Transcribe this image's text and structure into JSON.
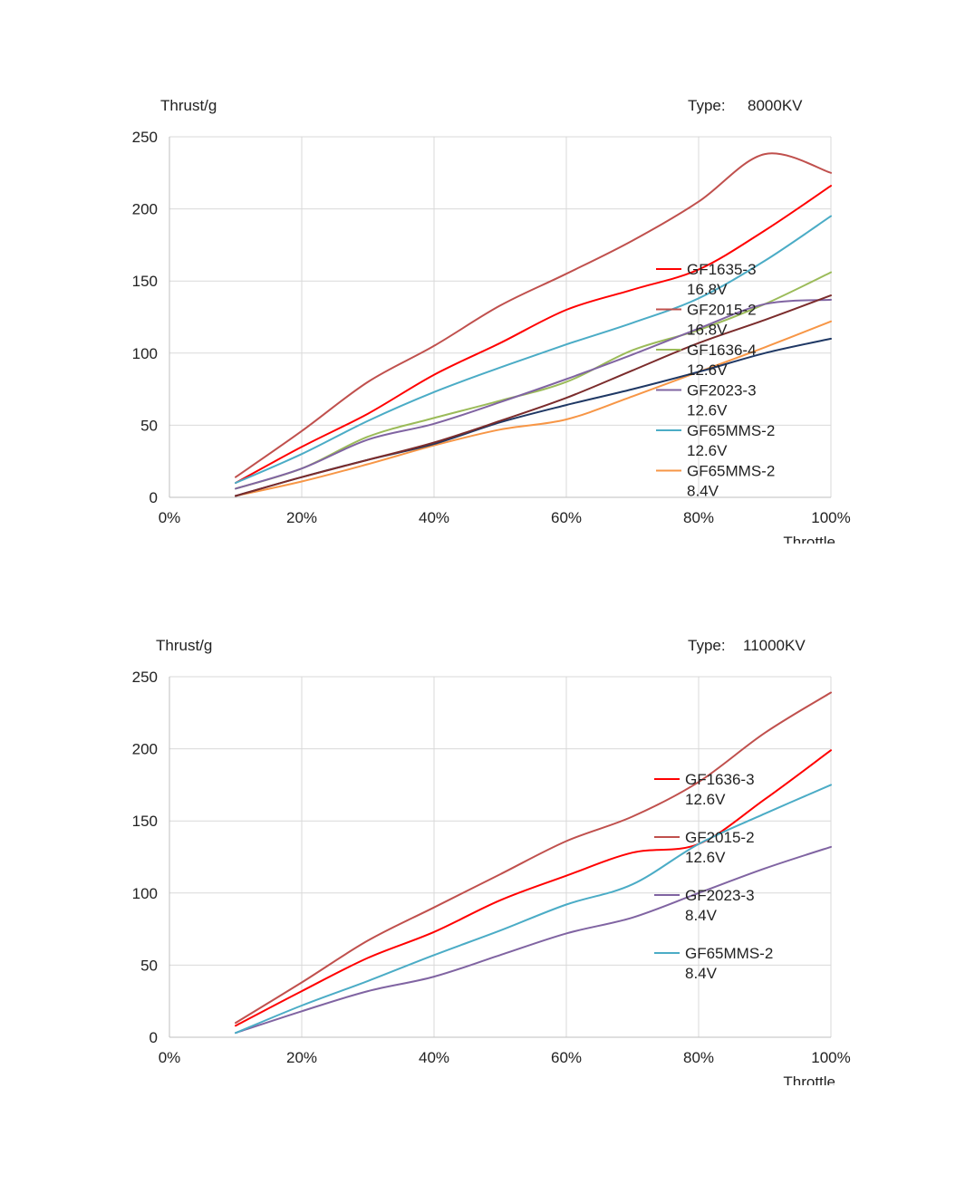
{
  "chart_data": [
    {
      "type": "line",
      "title": "",
      "ylabel": "Thrust/g",
      "xlabel": "Throttle",
      "type_label": "Type:",
      "type_value": "8000KV",
      "ylim": [
        0,
        250
      ],
      "xlim": [
        0,
        100
      ],
      "yticks": [
        "0",
        "50",
        "100",
        "150",
        "200",
        "250"
      ],
      "xticks": [
        "0%",
        "20%",
        "40%",
        "60%",
        "80%",
        "100%"
      ],
      "x": [
        10,
        20,
        30,
        40,
        50,
        60,
        70,
        80,
        90,
        100
      ],
      "grid": true,
      "legend_position": "right",
      "series": [
        {
          "name": "GF1635-3 16.8V",
          "color": "#ff0000",
          "values": [
            10,
            35,
            58,
            85,
            107,
            130,
            144,
            158,
            185,
            216
          ]
        },
        {
          "name": "GF2015-2 16.8V",
          "color": "#c0504d",
          "values": [
            14,
            46,
            80,
            105,
            133,
            155,
            178,
            205,
            238,
            225
          ]
        },
        {
          "name": "GF1636-4 12.6V",
          "color": "#9bbb59",
          "values": [
            6,
            20,
            42,
            55,
            67,
            80,
            102,
            116,
            134,
            156
          ]
        },
        {
          "name": "GF2023-3 12.6V",
          "color": "#8064a2",
          "values": [
            6,
            20,
            40,
            51,
            66,
            82,
            99,
            117,
            134,
            137
          ]
        },
        {
          "name": "GF65MMS-2 12.6V",
          "color": "#4bacc6",
          "values": [
            10,
            30,
            53,
            73,
            90,
            106,
            121,
            138,
            164,
            195
          ]
        },
        {
          "name": "GF65MMS-2 8.4V",
          "color": "#f79646",
          "values": [
            1,
            11,
            23,
            36,
            47,
            54,
            70,
            87,
            104,
            122
          ]
        },
        {
          "name": "",
          "color": "#1f3864",
          "values": [
            1,
            14,
            26,
            37,
            52,
            64,
            75,
            87,
            100,
            110
          ]
        },
        {
          "name": "",
          "color": "#7b2c2c",
          "values": [
            1,
            14,
            26,
            38,
            53,
            69,
            88,
            107,
            123,
            140
          ]
        }
      ]
    },
    {
      "type": "line",
      "title": "",
      "ylabel": "Thrust/g",
      "xlabel": "Throttle",
      "type_label": "Type:",
      "type_value": "11000KV",
      "ylim": [
        0,
        250
      ],
      "xlim": [
        0,
        100
      ],
      "yticks": [
        "0",
        "50",
        "100",
        "150",
        "200",
        "250"
      ],
      "xticks": [
        "0%",
        "20%",
        "40%",
        "60%",
        "80%",
        "100%"
      ],
      "x": [
        10,
        20,
        30,
        40,
        50,
        60,
        70,
        80,
        90,
        100
      ],
      "grid": true,
      "legend_position": "right",
      "series": [
        {
          "name": "GF1636-3 12.6V",
          "color": "#ff0000",
          "values": [
            8,
            32,
            55,
            73,
            95,
            112,
            128,
            134,
            165,
            199
          ]
        },
        {
          "name": "GF2015-2 12.6V",
          "color": "#c0504d",
          "values": [
            10,
            38,
            67,
            90,
            113,
            136,
            153,
            177,
            211,
            239
          ]
        },
        {
          "name": "GF2023-3 8.4V",
          "color": "#8064a2",
          "values": [
            3,
            18,
            32,
            42,
            57,
            72,
            83,
            100,
            117,
            132
          ]
        },
        {
          "name": "GF65MMS-2 8.4V",
          "color": "#4bacc6",
          "values": [
            3,
            22,
            39,
            57,
            74,
            92,
            106,
            134,
            155,
            175
          ]
        }
      ]
    }
  ]
}
